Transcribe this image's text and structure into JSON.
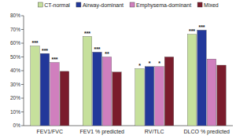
{
  "chart_data": {
    "type": "bar",
    "categories": [
      "FEV1/FVC",
      "FEV1 % predicted",
      "RV/TLC",
      "DLCO % predicted"
    ],
    "series": [
      {
        "name": "CT-normal",
        "color": "#c6e09c",
        "values": [
          58,
          65,
          41.5,
          66.5
        ],
        "significance": [
          "***",
          "***",
          "*",
          "***"
        ]
      },
      {
        "name": "Airway-dominant",
        "color": "#22389a",
        "values": [
          52.5,
          53.5,
          43,
          69.5
        ],
        "significance": [
          "***",
          "***",
          "*",
          "***"
        ]
      },
      {
        "name": "Emphysema-dominant",
        "color": "#d07fbe",
        "values": [
          46,
          50,
          43,
          48.5
        ],
        "significance": [
          "***",
          "**",
          "*",
          null
        ]
      },
      {
        "name": "Mixed",
        "color": "#7a1c2c",
        "values": [
          39.5,
          39,
          50,
          44
        ],
        "significance": [
          null,
          null,
          null,
          null
        ]
      }
    ],
    "ylim": [
      0,
      80
    ],
    "yticks": [
      {
        "value": 0,
        "label": "0%"
      },
      {
        "value": 10,
        "label": "10%"
      },
      {
        "value": 20,
        "label": "20%"
      },
      {
        "value": 30,
        "label": "30%"
      },
      {
        "value": 40,
        "label": "40%"
      },
      {
        "value": 50,
        "label": "50%"
      },
      {
        "value": 60,
        "label": "60%"
      },
      {
        "value": 70,
        "label": "70%"
      },
      {
        "value": 80,
        "label": "80%"
      }
    ],
    "grid": false,
    "legend": "top"
  }
}
